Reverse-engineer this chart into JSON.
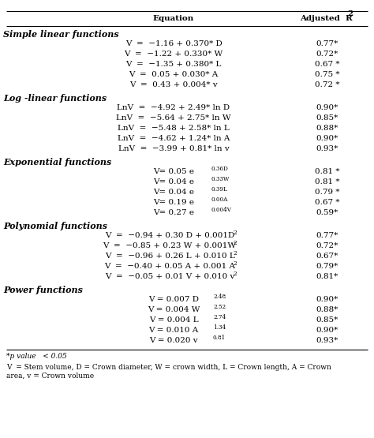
{
  "title_col1": "Equation",
  "title_col2": "Adjusted  R",
  "title_col2_super": "2",
  "sections": [
    {
      "header": "Simple linear functions",
      "type": "plain",
      "equations": [
        "V  =  −1.16 + 0.370* D",
        "V  =  −1.22 + 0.330* W",
        "V  =  −1.35 + 0.380* L",
        "V  =  0.05 + 0.030* A",
        "V  =  0.43 + 0.004* v"
      ],
      "r2": [
        "0.77*",
        "0.72*",
        "0.67 *",
        "0.75 *",
        "0.72 *"
      ]
    },
    {
      "header": "Log -linear functions",
      "type": "plain",
      "equations": [
        "LnV  =  −4.92 + 2.49* ln D",
        "LnV  =  −5.64 + 2.75* ln W",
        "LnV  =  −5.48 + 2.58* ln L",
        "LnV  =  −4.62 + 1.24* ln A",
        "LnV  =  −3.99 + 0.81* ln v"
      ],
      "r2": [
        "0.90*",
        "0.85*",
        "0.88*",
        "0.90*",
        "0.93*"
      ]
    },
    {
      "header": "Exponential functions",
      "type": "exponential",
      "equations": [
        [
          "V= 0.05 e",
          "0.36D"
        ],
        [
          "V= 0.04 e",
          "0.33W"
        ],
        [
          "V= 0.04 e",
          "0.39L"
        ],
        [
          "V= 0.19 e",
          "0.00A"
        ],
        [
          "V= 0.27 e",
          "0.004V"
        ]
      ],
      "r2": [
        "0.81 *",
        "0.81 *",
        "0.79 *",
        "0.67 *",
        "0.59*"
      ]
    },
    {
      "header": "Polynomial functions",
      "type": "polynomial",
      "equations": [
        [
          "V  =  −0.94 + 0.30 D + 0.001D",
          "2"
        ],
        [
          "V  =  −0.85 + 0.23 W + 0.001W",
          "2"
        ],
        [
          "V  =  −0.96 + 0.26 L + 0.010 L",
          "2"
        ],
        [
          "V  =  −0.40 + 0.05 A + 0.001 A",
          "2"
        ],
        [
          "V  =  −0.05 + 0.01 V + 0.010 v",
          "2"
        ]
      ],
      "r2": [
        "0.77*",
        "0.72*",
        "0.67*",
        "0.79*",
        "0.81*"
      ]
    },
    {
      "header": "Power functions",
      "type": "power",
      "equations": [
        [
          "V = 0.007 D",
          "2.48"
        ],
        [
          "V = 0.004 W",
          "2.52"
        ],
        [
          "V = 0.004 L",
          "2.74"
        ],
        [
          "V = 0.010 A",
          "1.34"
        ],
        [
          "V = 0.020 v",
          "0.81"
        ]
      ],
      "r2": [
        "0.90*",
        "0.88*",
        "0.85*",
        "0.90*",
        "0.93*"
      ]
    }
  ],
  "footnote1": "*p value   < 0.05",
  "footnote2": "V  = Stem volume, D = Crown diameter, W = crown width, L = Crown length, A = Crown",
  "footnote3": "area, v = Crown volume",
  "bg_color": "#ffffff",
  "text_color": "#000000",
  "figwidth": 4.74,
  "figheight": 5.55,
  "dpi": 100
}
